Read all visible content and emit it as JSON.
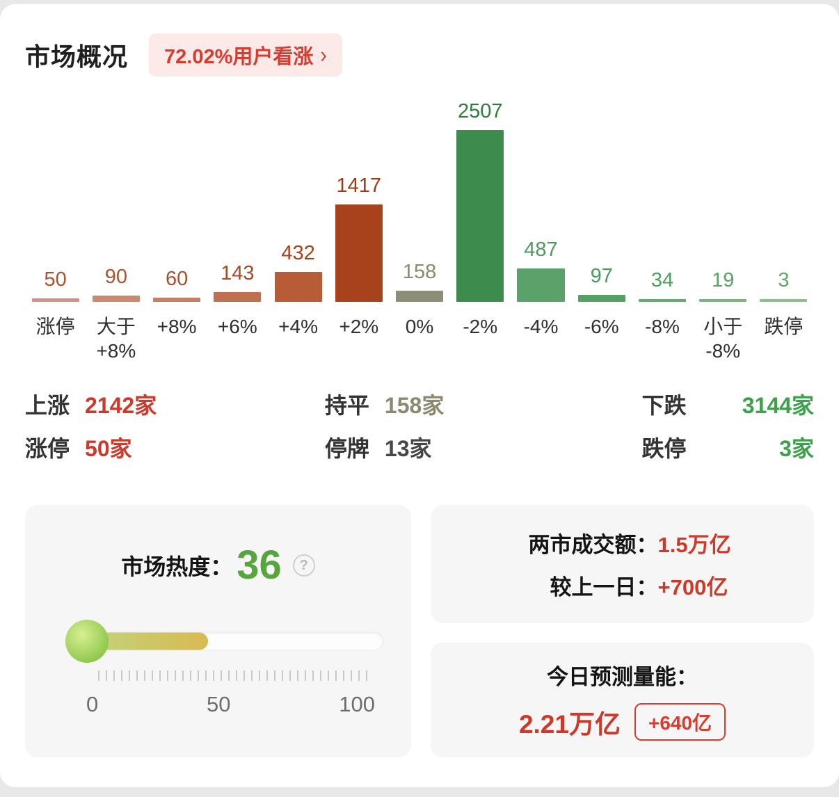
{
  "colors": {
    "red": "#ce392a",
    "green": "#3ba24c",
    "gray": "#8b8a70",
    "heat_green": "#57a53f",
    "badge_bg": "#fbeae7",
    "badge_text": "#d93b2f"
  },
  "header": {
    "title": "市场概况",
    "badge": "72.02%用户看涨",
    "chevron": "›"
  },
  "chart_data": {
    "type": "bar",
    "title": "",
    "xlabel": "",
    "ylabel": "",
    "ylim": [
      0,
      2507
    ],
    "grid": false,
    "categories": [
      "涨停",
      "大于\n+8%",
      "+8%",
      "+6%",
      "+4%",
      "+2%",
      "0%",
      "-2%",
      "-4%",
      "-6%",
      "-8%",
      "小于\n-8%",
      "跌停"
    ],
    "values": [
      50,
      90,
      60,
      143,
      432,
      1417,
      158,
      2507,
      487,
      97,
      34,
      19,
      3
    ],
    "bar_colors": [
      "#cf9480",
      "#cb8a70",
      "#c47f62",
      "#bf7050",
      "#b85c38",
      "#a8421d",
      "#8e8d77",
      "#3e8c4d",
      "#5aa269",
      "#55a062",
      "#66aa72",
      "#78b381",
      "#8cbd92"
    ],
    "label_colors": [
      "#a9532f",
      "#a9532f",
      "#a8502b",
      "#a64c26",
      "#a5441c",
      "#9c3a15",
      "#8b8a70",
      "#2e7d3c",
      "#4b9b5c",
      "#4a9a5b",
      "#529e61",
      "#5aa267",
      "#63a76d"
    ]
  },
  "summary": {
    "rows": [
      {
        "items": [
          {
            "label": "上涨",
            "value": "2142家",
            "color": "#ce392a"
          },
          {
            "label": "持平",
            "value": "158家",
            "color": "#8b8a70"
          },
          {
            "label": "下跌",
            "value": "3144家",
            "color": "#3ba24c"
          }
        ]
      },
      {
        "items": [
          {
            "label": "涨停",
            "value": "50家",
            "color": "#ce392a"
          },
          {
            "label": "停牌",
            "value": "13家",
            "color": "#474747"
          },
          {
            "label": "跌停",
            "value": "3家",
            "color": "#3ba24c"
          }
        ]
      }
    ]
  },
  "heat": {
    "label": "市场热度：",
    "value": "36",
    "percent": 36,
    "help": "?",
    "scale": [
      "0",
      "50",
      "100"
    ]
  },
  "turnover": {
    "label1": "两市成交额：",
    "value1": "1.5万亿",
    "label2": "较上一日：",
    "value2": "+700亿"
  },
  "forecast": {
    "label": "今日预测量能：",
    "value": "2.21万亿",
    "badge": "+640亿"
  }
}
